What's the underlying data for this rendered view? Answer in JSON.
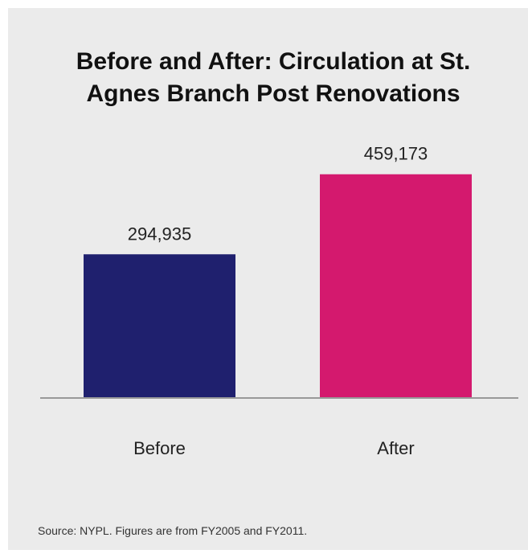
{
  "chart_data": {
    "type": "bar",
    "title": "Before and After: Circulation at St. Agnes Branch Post Renovations",
    "categories": [
      "Before",
      "After"
    ],
    "values": [
      294935,
      459173
    ],
    "value_labels": [
      "294,935",
      "459,173"
    ],
    "colors": [
      "#1f206e",
      "#d4196e"
    ],
    "ylim": [
      0,
      500000
    ],
    "source": "Source: NYPL. Figures are from FY2005 and FY2011."
  }
}
